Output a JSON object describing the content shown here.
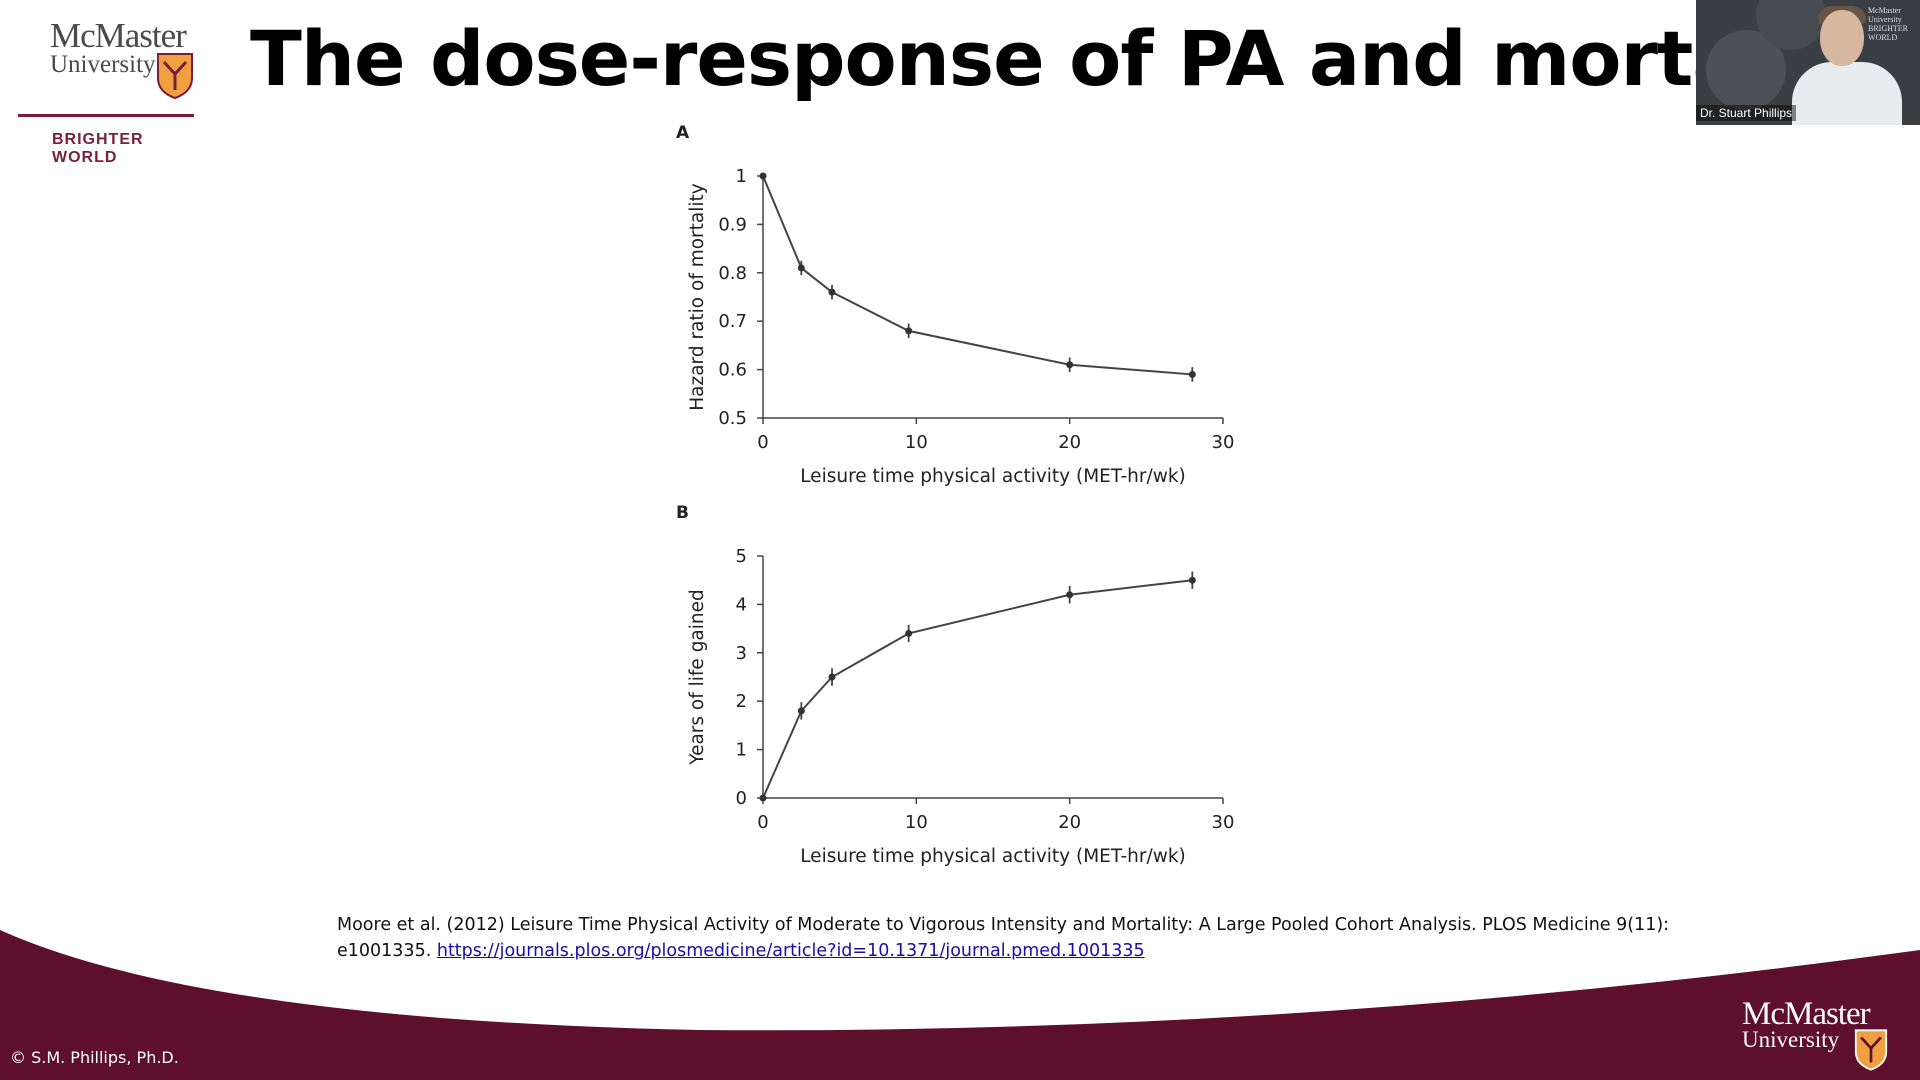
{
  "slide": {
    "title": "The dose-response of PA and mortality",
    "logo": {
      "name_line1": "McMaster",
      "name_line2": "University",
      "tagline": "BRIGHTER WORLD"
    },
    "presenter_name": "Dr. Stuart Phillips",
    "presenter_mini_logo": [
      "McMaster",
      "University",
      "BRIGHTER",
      "WORLD"
    ],
    "citation_text": "Moore et al. (2012) Leisure Time Physical Activity of Moderate to Vigorous Intensity and Mortality: A Large Pooled Cohort Analysis. PLOS Medicine 9(11): e1001335.",
    "citation_link": "https://journals.plos.org/plosmedicine/article?id=10.1371/journal.pmed.1001335",
    "copyright": "© S.M. Phillips, Ph.D.",
    "colors": {
      "maroon": "#5e0f2b",
      "accent": "#7a1f3a",
      "link": "#1a0dab"
    }
  },
  "chart_data": [
    {
      "type": "line",
      "panel_label": "A",
      "xlabel": "Leisure time physical activity (MET-hr/wk)",
      "ylabel": "Hazard ratio of mortality",
      "xlim": [
        0,
        30
      ],
      "ylim": [
        0.5,
        1
      ],
      "xticks": [
        0,
        10,
        20,
        30
      ],
      "yticks": [
        0.5,
        0.6,
        0.7,
        0.8,
        0.9,
        1
      ],
      "ytick_labels": [
        "0.5",
        "0.6",
        "0.7",
        "0.8",
        "0.9",
        "1"
      ],
      "x": [
        0,
        2.5,
        4.5,
        9.5,
        20,
        28
      ],
      "values": [
        1.0,
        0.81,
        0.76,
        0.68,
        0.61,
        0.59
      ],
      "error": [
        0,
        0.015,
        0.015,
        0.015,
        0.015,
        0.015
      ]
    },
    {
      "type": "line",
      "panel_label": "B",
      "xlabel": "Leisure time physical activity (MET-hr/wk)",
      "ylabel": "Years of life gained",
      "xlim": [
        0,
        30
      ],
      "ylim": [
        0,
        5
      ],
      "xticks": [
        0,
        10,
        20,
        30
      ],
      "yticks": [
        0,
        1,
        2,
        3,
        4,
        5
      ],
      "ytick_labels": [
        "0",
        "1",
        "2",
        "3",
        "4",
        "5"
      ],
      "x": [
        0,
        2.5,
        4.5,
        9.5,
        20,
        28
      ],
      "values": [
        0,
        1.8,
        2.5,
        3.4,
        4.2,
        4.5
      ],
      "error": [
        0,
        0.18,
        0.18,
        0.18,
        0.18,
        0.18
      ]
    }
  ]
}
